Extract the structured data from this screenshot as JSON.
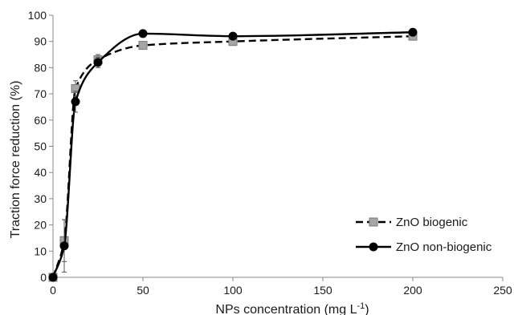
{
  "chart_data": {
    "type": "line",
    "title": "",
    "xlabel": "NPs concentration (mg L",
    "xlabel_superscript": "-1",
    "xlabel_close": ")",
    "ylabel": "Traction force reduction (%)",
    "xlim": [
      0,
      250
    ],
    "ylim": [
      0,
      100
    ],
    "xticks": [
      0,
      50,
      100,
      150,
      200,
      250
    ],
    "yticks": [
      0,
      10,
      20,
      30,
      40,
      50,
      60,
      70,
      80,
      90,
      100
    ],
    "grid": false,
    "legend_position": "bottom-right",
    "series": [
      {
        "name": "ZnO biogenic",
        "marker": "square",
        "line_style": "dashed",
        "color": "#000000",
        "marker_fill": "#a6a6a6",
        "x": [
          0,
          6.25,
          12.5,
          25,
          50,
          100,
          200
        ],
        "y": [
          0,
          14,
          72,
          83,
          88.5,
          90,
          92
        ],
        "error": [
          0,
          8,
          3,
          2,
          1,
          1.5,
          1
        ]
      },
      {
        "name": "ZnO non-biogenic",
        "marker": "circle",
        "line_style": "solid",
        "color": "#000000",
        "marker_fill": "#000000",
        "x": [
          0,
          6.25,
          12.5,
          25,
          50,
          100,
          200
        ],
        "y": [
          0,
          12,
          67,
          82,
          93,
          92,
          93.5
        ],
        "error": [
          0,
          10,
          4,
          2,
          0.5,
          1,
          0.5
        ]
      }
    ]
  }
}
